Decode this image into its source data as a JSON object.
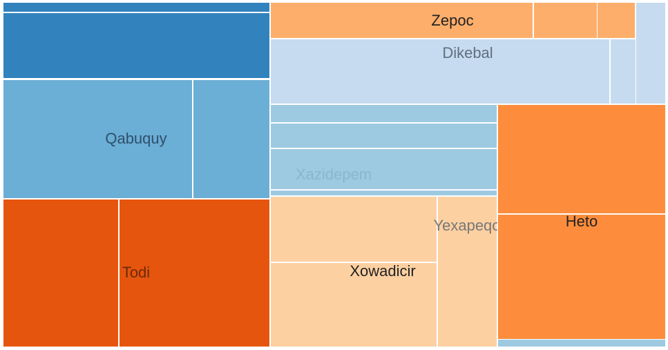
{
  "colors": {
    "blue_dark": "#3182bd",
    "blue_mid": "#6baed6",
    "blue_light": "#c6dbef",
    "blue_pale": "#9ecae1",
    "orange_dark": "#e6550d",
    "orange_mid": "#fd8d3c",
    "orange_light": "#fdae6b",
    "orange_pale": "#fdd0a2"
  },
  "chart_data": {
    "type": "treemap",
    "title": "",
    "groups": [
      {
        "name": "",
        "color": "#3182bd",
        "show_label": false,
        "values": [
          15,
          96
        ]
      },
      {
        "name": "Qabuquy",
        "color": "#6baed6",
        "show_label": true,
        "label_color": "#2f4f6a",
        "values": [
          263,
          107
        ]
      },
      {
        "name": "Todi",
        "color": "#e6550d",
        "show_label": true,
        "label_color": "#6b2a08",
        "values": [
          113,
          147
        ]
      },
      {
        "name": "Zepoc",
        "color": "#fdae6b",
        "show_label": true,
        "label_color": "#222222",
        "values": [
          85,
          33
        ]
      },
      {
        "name": "Dikebal",
        "color": "#c6dbef",
        "show_label": true,
        "label_color": "#5f7080",
        "values": [
          152,
          25
        ]
      },
      {
        "name": "Xazidepem",
        "color": "#9ecae1",
        "show_label": true,
        "label_color": "#8bb5cc",
        "values": [
          18,
          25,
          41,
          6
        ]
      },
      {
        "name": "Xowadicir",
        "color": "#fdd0a2",
        "show_label": true,
        "label_color": "#222222",
        "values": [
          60,
          77
        ]
      },
      {
        "name": "Yexapeqo",
        "color": "#fdd0a2",
        "show_label": true,
        "label_color": "#777777",
        "values": [
          57
        ]
      },
      {
        "name": "Heto",
        "color": "#fd8d3c",
        "show_label": true,
        "label_color": "#222222",
        "values": [
          85,
          103
        ]
      }
    ]
  }
}
